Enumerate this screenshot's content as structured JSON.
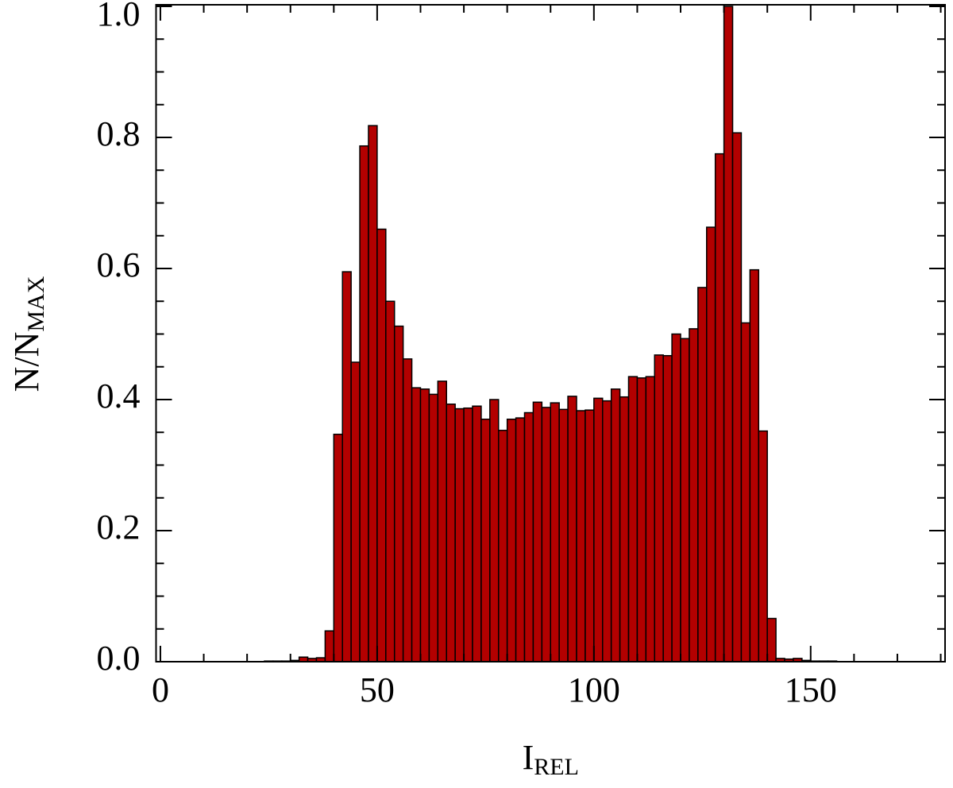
{
  "chart_data": {
    "type": "histogram",
    "xlabel": {
      "text": "I",
      "sub": "REL"
    },
    "ylabel": {
      "text": "N/N",
      "sub": "MAX"
    },
    "bins": [
      24,
      26,
      28,
      30,
      32,
      34,
      36,
      38,
      40,
      42,
      44,
      46,
      48,
      50,
      52,
      54,
      56,
      58,
      60,
      62,
      64,
      66,
      68,
      70,
      72,
      74,
      76,
      78,
      80,
      82,
      84,
      86,
      88,
      90,
      92,
      94,
      96,
      98,
      100,
      102,
      104,
      106,
      108,
      110,
      112,
      114,
      116,
      118,
      120,
      122,
      124,
      126,
      128,
      130,
      132,
      134,
      136,
      138,
      140,
      142,
      144,
      146,
      148,
      150,
      152,
      154,
      156
    ],
    "values": [
      0.001,
      0.001,
      0.001,
      0.002,
      0.007,
      0.005,
      0.006,
      0.047,
      0.347,
      0.595,
      0.457,
      0.787,
      0.818,
      0.66,
      0.55,
      0.512,
      0.462,
      0.418,
      0.416,
      0.408,
      0.428,
      0.393,
      0.386,
      0.387,
      0.39,
      0.37,
      0.4,
      0.353,
      0.37,
      0.372,
      0.38,
      0.396,
      0.388,
      0.395,
      0.385,
      0.405,
      0.383,
      0.384,
      0.402,
      0.398,
      0.416,
      0.404,
      0.435,
      0.433,
      0.435,
      0.468,
      0.467,
      0.5,
      0.493,
      0.508,
      0.571,
      0.663,
      0.775,
      1.0,
      0.807,
      0.517,
      0.598,
      0.352,
      0.066,
      0.005,
      0.004,
      0.005,
      0.002,
      0.001,
      0.001,
      0.001
    ],
    "color": "#b30000",
    "xlim": [
      -1,
      181
    ],
    "ylim": [
      0,
      1
    ],
    "xticks": [
      0,
      50,
      100,
      150
    ],
    "xminorticks": [
      10,
      20,
      30,
      40,
      60,
      70,
      80,
      90,
      110,
      120,
      130,
      140,
      160,
      170,
      180
    ],
    "yticks": [
      {
        "value": 0,
        "label": "0.0"
      },
      0.2,
      0.4,
      0.6,
      0.8,
      {
        "value": 1,
        "label": "1.0"
      }
    ],
    "yminorticks": [
      0.05,
      0.1,
      0.15,
      0.25,
      0.3,
      0.35,
      0.45,
      0.5,
      0.55,
      0.65,
      0.7,
      0.75,
      0.85,
      0.9,
      0.95
    ]
  }
}
